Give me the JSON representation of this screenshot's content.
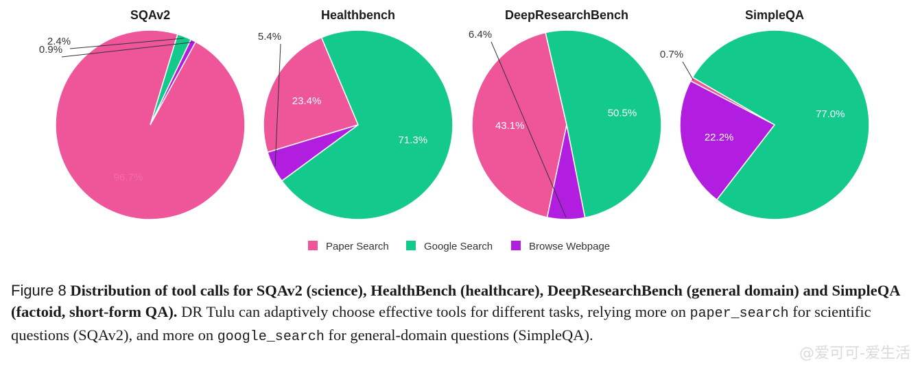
{
  "chart_data": [
    {
      "type": "pie",
      "title": "SQAv2",
      "categories": [
        "Paper Search",
        "Google Search",
        "Browse Webpage"
      ],
      "values": [
        96.7,
        2.4,
        0.9
      ],
      "labels": [
        "96.7%",
        "2.4%",
        "0.9%"
      ]
    },
    {
      "type": "pie",
      "title": "Healthbench",
      "categories": [
        "Paper Search",
        "Google Search",
        "Browse Webpage"
      ],
      "values": [
        23.4,
        71.3,
        5.4
      ],
      "labels": [
        "23.4%",
        "71.3%",
        "5.4%"
      ]
    },
    {
      "type": "pie",
      "title": "DeepResearchBench",
      "categories": [
        "Paper Search",
        "Google Search",
        "Browse Webpage"
      ],
      "values": [
        43.1,
        50.5,
        6.4
      ],
      "labels": [
        "43.1%",
        "50.5%",
        "6.4%"
      ]
    },
    {
      "type": "pie",
      "title": "SimpleQA",
      "categories": [
        "Paper Search",
        "Google Search",
        "Browse Webpage"
      ],
      "values": [
        0.7,
        77.0,
        22.2
      ],
      "labels": [
        "0.7%",
        "77.0%",
        "22.2%"
      ]
    }
  ],
  "legend": {
    "items": [
      "Paper Search",
      "Google Search",
      "Browse Webpage"
    ],
    "colors": [
      "#ef5599",
      "#13c98b",
      "#b21ee0"
    ]
  },
  "caption": {
    "figure_label": "Figure 8",
    "bold_text": "Distribution of tool calls for SQAv2 (science), HealthBench (healthcare), DeepResearchBench (general domain) and SimpleQA (factoid, short-form QA).",
    "text_1": " DR Tulu can adaptively choose effective tools for different tasks, relying more on ",
    "code_1": "paper_search",
    "text_2": " for scientific questions (SQAv2), and more on ",
    "code_2": "google_search",
    "text_3": " for general-domain questions (SimpleQA)."
  },
  "watermark": "@爱可可-爱生活"
}
